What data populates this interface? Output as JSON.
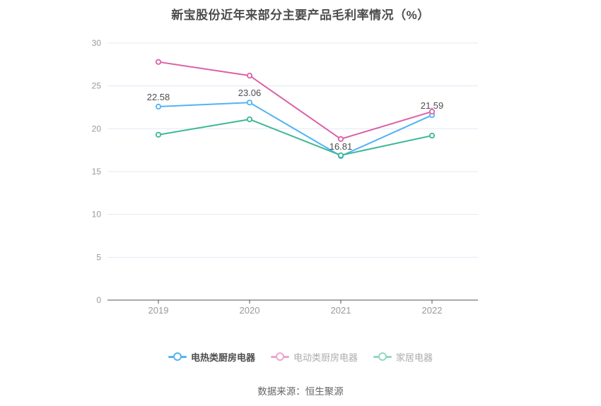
{
  "title": "新宝股份近年来部分主要产品毛利率情况（%）",
  "source": "数据来源：恒生聚源",
  "colors": {
    "series1": "#53b3f3",
    "series2": "#dc61a7",
    "series3": "#3eb795",
    "grid": "#e2e8f3",
    "axis": "#555555",
    "tick_label": "#999999",
    "data_label": "#4d4d4d"
  },
  "chart_data": {
    "type": "line",
    "title": "新宝股份近年来部分主要产品毛利率情况（%）",
    "categories": [
      "2019",
      "2020",
      "2021",
      "2022"
    ],
    "series": [
      {
        "name": "电热类厨房电器",
        "color": "#53b3f3",
        "values": [
          22.58,
          23.06,
          16.81,
          21.59
        ],
        "labeled": true
      },
      {
        "name": "电动类厨房电器",
        "color": "#dc61a7",
        "values": [
          27.8,
          26.2,
          18.8,
          22.0
        ],
        "labeled": false
      },
      {
        "name": "家居电器",
        "color": "#3eb795",
        "values": [
          19.3,
          21.1,
          16.9,
          19.2
        ],
        "labeled": false
      }
    ],
    "data_labels": [
      "22.58",
      "23.06",
      "16.81",
      "21.59"
    ],
    "y_ticks": [
      0,
      5,
      10,
      15,
      20,
      25,
      30
    ],
    "ylim": [
      0,
      30
    ],
    "xlabel": "",
    "ylabel": "",
    "grid": true,
    "legend_position": "bottom"
  },
  "legend": {
    "items": [
      {
        "label": "电热类厨房电器"
      },
      {
        "label": "电动类厨房电器"
      },
      {
        "label": "家居电器"
      }
    ]
  }
}
